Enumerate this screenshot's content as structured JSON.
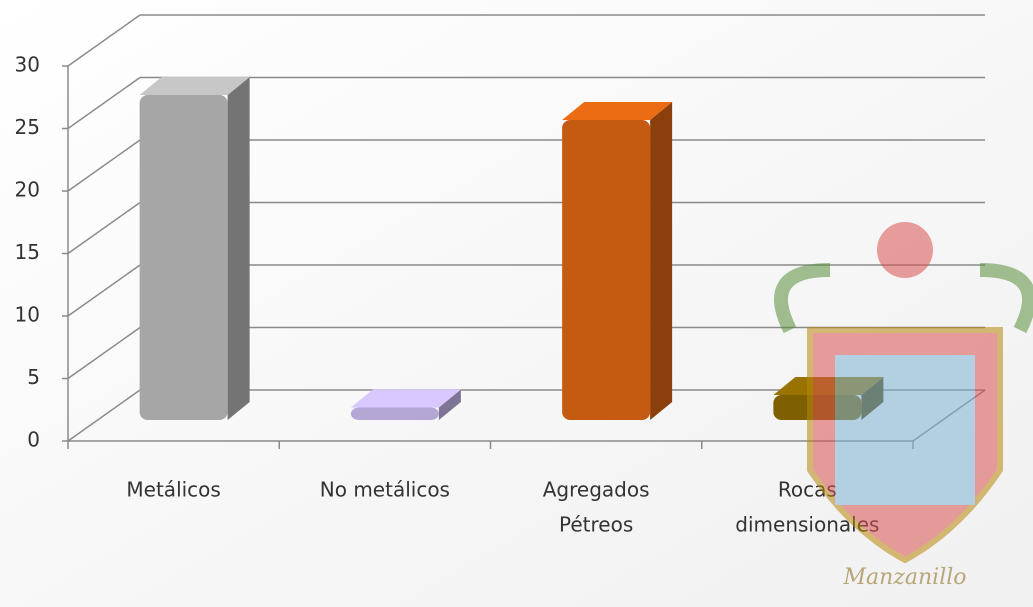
{
  "chart_data": {
    "type": "bar3d",
    "categories": [
      [
        "Metálicos"
      ],
      [
        "No metálicos"
      ],
      [
        "Agregados",
        "Pétreos"
      ],
      [
        "Rocas",
        "dimensionales"
      ]
    ],
    "values": [
      26,
      1,
      24,
      2
    ],
    "colors": [
      "#a6a6a6",
      "#b4a7d6",
      "#c55a11",
      "#7f6000"
    ],
    "ylim": [
      0,
      30
    ],
    "yticks": [
      0,
      5,
      10,
      15,
      20,
      25,
      30
    ],
    "grid": true
  },
  "watermark_text": "Manzanillo"
}
